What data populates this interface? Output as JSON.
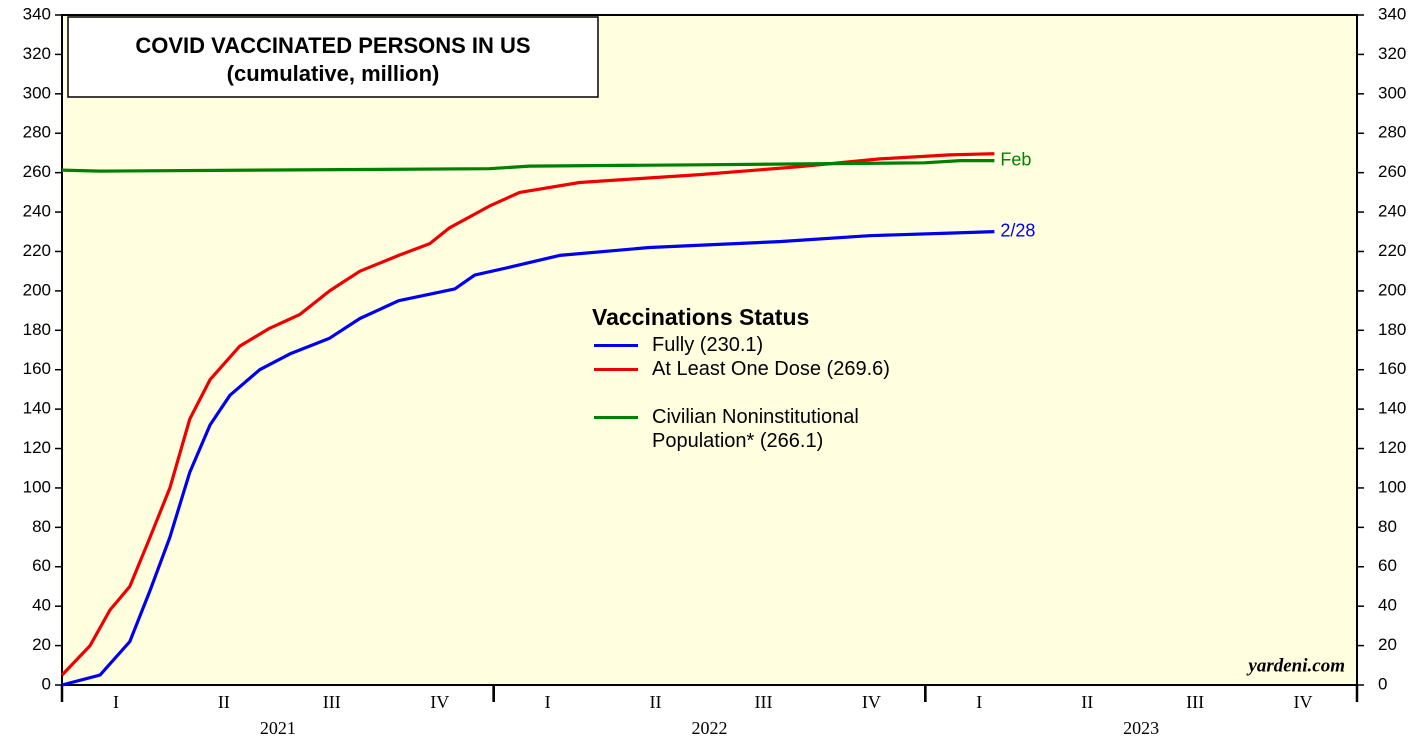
{
  "chart_data": {
    "type": "line",
    "title": "COVID VACCINATED PERSONS IN US",
    "subtitle": "(cumulative, million)",
    "legend_title": "Vaccinations Status",
    "source": "yardeni.com",
    "xlim": [
      2021,
      2024
    ],
    "ylim": [
      0,
      340
    ],
    "yticks": [
      0,
      20,
      40,
      60,
      80,
      100,
      120,
      140,
      160,
      180,
      200,
      220,
      240,
      260,
      280,
      300,
      320,
      340
    ],
    "xticks": [
      {
        "value": 2021.125,
        "label": "I"
      },
      {
        "value": 2021.375,
        "label": "II"
      },
      {
        "value": 2021.625,
        "label": "III"
      },
      {
        "value": 2021.875,
        "label": "IV"
      },
      {
        "value": 2022.125,
        "label": "I"
      },
      {
        "value": 2022.375,
        "label": "II"
      },
      {
        "value": 2022.625,
        "label": "III"
      },
      {
        "value": 2022.875,
        "label": "IV"
      },
      {
        "value": 2023.125,
        "label": "I"
      },
      {
        "value": 2023.375,
        "label": "II"
      },
      {
        "value": 2023.625,
        "label": "III"
      },
      {
        "value": 2023.875,
        "label": "IV"
      }
    ],
    "year_labels": [
      {
        "value": 2021.5,
        "label": "2021"
      },
      {
        "value": 2022.5,
        "label": "2022"
      },
      {
        "value": 2023.5,
        "label": "2023"
      }
    ],
    "series": [
      {
        "name": "Fully  (230.1)",
        "color": "#0000ee",
        "end_label": "2/28",
        "x": [
          2021.0,
          2021.088,
          2021.157,
          2021.204,
          2021.25,
          2021.296,
          2021.343,
          2021.389,
          2021.458,
          2021.528,
          2021.62,
          2021.69,
          2021.78,
          2021.91,
          2021.956,
          2022.037,
          2022.153,
          2022.361,
          2022.662,
          2022.87,
          2023.056,
          2023.16
        ],
        "values": [
          0,
          5,
          22,
          48,
          75,
          108,
          132,
          147,
          160,
          168,
          176,
          186,
          195,
          201,
          208,
          212,
          218,
          222,
          225,
          228,
          229.3,
          230.1
        ]
      },
      {
        "name": "At Least One Dose (269.6)",
        "color": "#ee0000",
        "x": [
          2021.0,
          2021.065,
          2021.111,
          2021.157,
          2021.204,
          2021.25,
          2021.296,
          2021.343,
          2021.412,
          2021.481,
          2021.551,
          2021.62,
          2021.69,
          2021.78,
          2021.852,
          2021.898,
          2021.99,
          2022.06,
          2022.199,
          2022.477,
          2022.708,
          2022.894,
          2023.056,
          2023.16
        ],
        "values": [
          5,
          20,
          38,
          50,
          75,
          100,
          135,
          155,
          172,
          181,
          188,
          200,
          210,
          218,
          224,
          232,
          243,
          250,
          255,
          259,
          263,
          267,
          269,
          269.6
        ]
      },
      {
        "name": "Civilian Noninstitutional Population* (266.1)",
        "color": "#008000",
        "end_label": "Feb",
        "x": [
          2021.0,
          2021.088,
          2021.99,
          2022.083,
          2022.477,
          2022.998,
          2023.081,
          2023.16
        ],
        "values": [
          261.3,
          260.8,
          262,
          263.3,
          264,
          265,
          266.1,
          266.1
        ]
      }
    ]
  }
}
